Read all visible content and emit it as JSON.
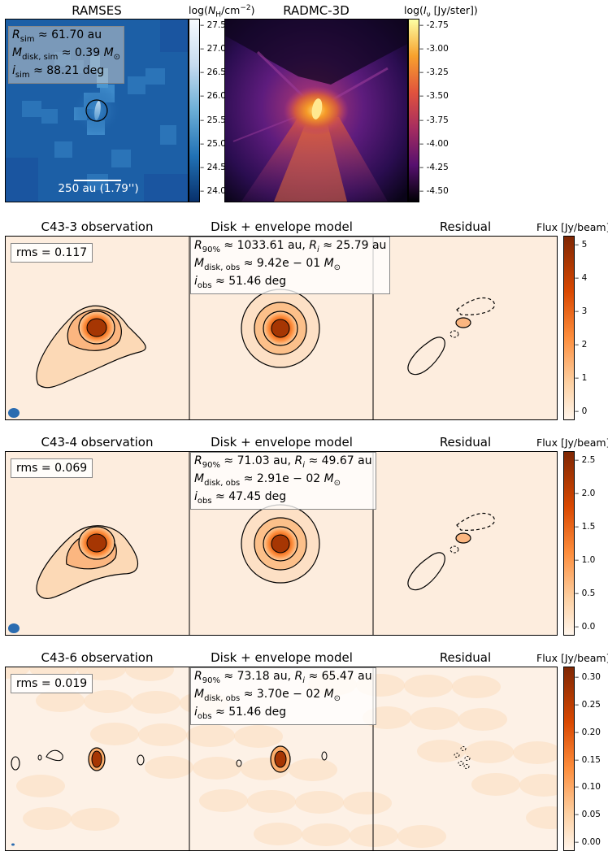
{
  "top": {
    "ramses": {
      "title": "RAMSES",
      "colorbar_label": "log(N_H/cm^-2)",
      "ticks": [
        "27.5",
        "27.0",
        "26.5",
        "26.0",
        "25.5",
        "25.0",
        "24.5",
        "24.0"
      ],
      "info_line1": "R_sim ≈ 61.70 au",
      "info_line2": "M_disk,sim ≈ 0.39 M_⊙",
      "info_line3": "i_sim ≈ 88.21 deg",
      "scalebar": "250 au (1.79'')"
    },
    "radmc": {
      "title": "RADMC-3D",
      "colorbar_label": "log(I_ν [Jy/ster])",
      "ticks": [
        "-2.75",
        "-3.00",
        "-3.25",
        "-3.50",
        "-3.75",
        "-4.00",
        "-4.25",
        "-4.50"
      ]
    }
  },
  "rows": [
    {
      "obs_title": "C43-3 observation",
      "model_title": "Disk + envelope model",
      "resid_title": "Residual",
      "cb_label": "Flux [Jy/beam]",
      "rms": "rms = 0.117",
      "info_line1": "R_90% ≈ 1033.61 au, R_i ≈ 25.79 au",
      "info_line2": "M_disk,obs ≈ 9.42e − 01 M_⊙",
      "info_line3": "i_obs ≈ 51.46 deg",
      "ticks": [
        "5",
        "4",
        "3",
        "2",
        "1",
        "0"
      ]
    },
    {
      "obs_title": "C43-4 observation",
      "model_title": "Disk + envelope model",
      "resid_title": "Residual",
      "cb_label": "Flux [Jy/beam]",
      "rms": "rms = 0.069",
      "info_line1": "R_90% ≈ 71.03 au, R_i ≈ 49.67 au",
      "info_line2": "M_disk,obs ≈ 2.91e − 02 M_⊙",
      "info_line3": "i_obs ≈ 47.45 deg",
      "ticks": [
        "2.5",
        "2.0",
        "1.5",
        "1.0",
        "0.5",
        "0.0"
      ]
    },
    {
      "obs_title": "C43-6 observation",
      "model_title": "Disk + envelope model",
      "resid_title": "Residual",
      "cb_label": "Flux [Jy/beam]",
      "rms": "rms = 0.019",
      "info_line1": "R_90% ≈ 73.18 au, R_i ≈ 65.47 au",
      "info_line2": "M_disk,obs ≈ 3.70e − 02 M_⊙",
      "info_line3": "i_obs ≈ 51.46 deg",
      "ticks": [
        "0.30",
        "0.25",
        "0.20",
        "0.15",
        "0.10",
        "0.05",
        "0.00"
      ]
    }
  ]
}
